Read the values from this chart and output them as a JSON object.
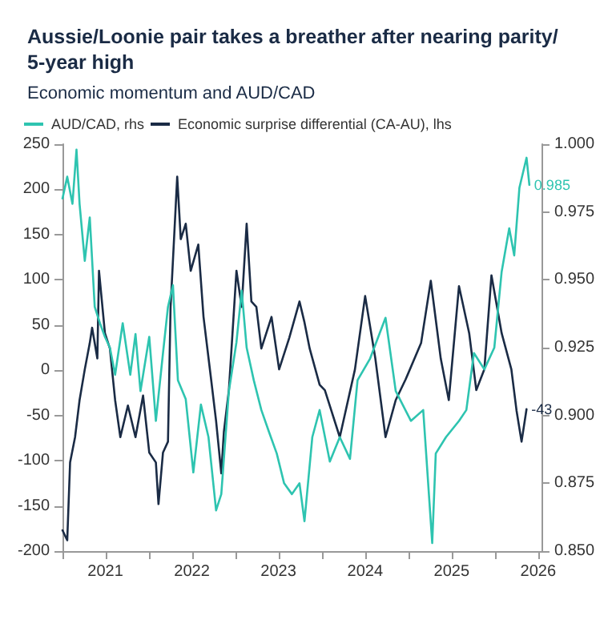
{
  "chart_data": {
    "type": "line",
    "title": "Aussie/Loonie pair takes a breather after nearing parity/ 5-year high",
    "subtitle": "Economic momentum and AUD/CAD",
    "legend": "top left",
    "grid": false,
    "marker": "none",
    "line_style": "solid",
    "xlim": [
      "2021-01-01",
      "2026-07-15"
    ],
    "xticks": [
      {
        "value": "2021-01-01",
        "label": null
      },
      {
        "value": "2021-07-01",
        "label": "2021"
      },
      {
        "value": "2022-01-01",
        "label": null
      },
      {
        "value": "2022-07-01",
        "label": "2022"
      },
      {
        "value": "2023-01-01",
        "label": null
      },
      {
        "value": "2023-07-01",
        "label": "2023"
      },
      {
        "value": "2024-01-01",
        "label": null
      },
      {
        "value": "2024-07-01",
        "label": "2024"
      },
      {
        "value": "2025-01-01",
        "label": null
      },
      {
        "value": "2025-07-01",
        "label": "2025"
      },
      {
        "value": "2026-01-01",
        "label": null
      },
      {
        "value": "2026-07-01",
        "label": "2026"
      }
    ],
    "ylim": [
      -200,
      250
    ],
    "yticks": [
      -200,
      -150,
      -100,
      -50,
      0,
      50,
      100,
      150,
      200,
      250
    ],
    "y2lim": [
      0.85,
      1.0
    ],
    "y2ticks": [
      {
        "value": 0.85,
        "label": "0.850"
      },
      {
        "value": 0.875,
        "label": "0.875"
      },
      {
        "value": 0.9,
        "label": "0.900"
      },
      {
        "value": 0.925,
        "label": "0.925"
      },
      {
        "value": 0.95,
        "label": "0.950"
      },
      {
        "value": 0.975,
        "label": "0.975"
      },
      {
        "value": 1.0,
        "label": "1.000"
      }
    ],
    "series": [
      {
        "name": "AUD/CAD, rhs",
        "color": "#2ec4b0",
        "axis": "y2",
        "x": [
          "2021-01-01",
          "2021-01-21",
          "2021-02-12",
          "2021-03-01",
          "2021-03-14",
          "2021-04-05",
          "2021-04-26",
          "2021-05-17",
          "2021-06-08",
          "2021-06-29",
          "2021-07-20",
          "2021-08-11",
          "2021-09-12",
          "2021-10-14",
          "2021-11-05",
          "2021-11-26",
          "2022-01-02",
          "2022-01-30",
          "2022-03-01",
          "2022-03-22",
          "2022-04-12",
          "2022-05-03",
          "2022-06-05",
          "2022-07-07",
          "2022-08-08",
          "2022-09-09",
          "2022-10-11",
          "2022-11-02",
          "2022-12-04",
          "2023-01-05",
          "2023-01-27",
          "2023-02-17",
          "2023-03-19",
          "2023-04-20",
          "2023-05-22",
          "2023-06-24",
          "2023-07-25",
          "2023-08-27",
          "2023-09-28",
          "2023-10-19",
          "2023-11-21",
          "2023-12-22",
          "2024-02-03",
          "2024-03-16",
          "2024-04-28",
          "2024-05-30",
          "2024-07-22",
          "2024-09-25",
          "2024-11-07",
          "2025-01-10",
          "2025-03-03",
          "2025-04-10",
          "2025-04-25",
          "2025-06-07",
          "2025-08-01",
          "2025-09-01",
          "2025-10-03",
          "2025-11-16",
          "2025-12-28",
          "2026-01-28",
          "2026-03-01",
          "2026-03-22",
          "2026-04-13",
          "2026-05-13",
          "2026-05-25"
        ],
        "values": [
          0.98,
          0.988,
          0.978,
          0.998,
          0.978,
          0.957,
          0.973,
          0.94,
          0.934,
          0.929,
          0.925,
          0.915,
          0.934,
          0.915,
          0.93,
          0.909,
          0.929,
          0.898,
          0.923,
          0.94,
          0.948,
          0.913,
          0.906,
          0.879,
          0.904,
          0.892,
          0.865,
          0.871,
          0.909,
          0.927,
          0.946,
          0.925,
          0.913,
          0.902,
          0.894,
          0.886,
          0.875,
          0.871,
          0.875,
          0.861,
          0.892,
          0.902,
          0.883,
          0.892,
          0.884,
          0.913,
          0.921,
          0.936,
          0.909,
          0.898,
          0.902,
          0.853,
          0.886,
          0.892,
          0.898,
          0.902,
          0.923,
          0.917,
          0.925,
          0.953,
          0.969,
          0.959,
          0.984,
          0.995,
          0.985
        ],
        "value_labels": [
          null,
          null,
          null,
          null,
          null,
          null,
          null,
          null,
          null,
          null,
          null,
          null,
          null,
          null,
          null,
          null,
          null,
          null,
          null,
          null,
          null,
          null,
          null,
          null,
          null,
          null,
          null,
          null,
          null,
          null,
          null,
          null,
          null,
          null,
          null,
          null,
          null,
          null,
          null,
          null,
          null,
          null,
          null,
          null,
          null,
          null,
          null,
          null,
          null,
          null,
          null,
          null,
          null,
          null,
          null,
          null,
          null,
          null,
          null,
          null,
          null,
          null,
          null,
          null,
          "0.985"
        ]
      },
      {
        "name": "Economic surprise differential (CA-AU), lhs",
        "color": "#1a2b45",
        "x": [
          "2021-01-01",
          "2021-01-21",
          "2021-02-02",
          "2021-02-23",
          "2021-03-14",
          "2021-04-05",
          "2021-04-26",
          "2021-05-06",
          "2021-05-28",
          "2021-06-04",
          "2021-06-29",
          "2021-07-20",
          "2021-08-11",
          "2021-09-02",
          "2021-10-04",
          "2021-11-05",
          "2021-12-07",
          "2022-01-02",
          "2022-01-30",
          "2022-02-10",
          "2022-03-01",
          "2022-03-22",
          "2022-04-02",
          "2022-04-30",
          "2022-05-15",
          "2022-06-05",
          "2022-06-26",
          "2022-07-28",
          "2022-08-19",
          "2022-09-20",
          "2022-10-11",
          "2022-11-02",
          "2022-11-13",
          "2022-12-04",
          "2023-01-05",
          "2023-01-27",
          "2023-02-17",
          "2023-03-09",
          "2023-03-30",
          "2023-04-20",
          "2023-06-02",
          "2023-07-04",
          "2023-08-16",
          "2023-09-28",
          "2023-10-19",
          "2023-11-10",
          "2023-12-22",
          "2024-01-13",
          "2024-03-16",
          "2024-05-19",
          "2024-07-01",
          "2024-08-13",
          "2024-09-25",
          "2024-11-07",
          "2024-12-19",
          "2025-02-22",
          "2025-04-04",
          "2025-05-16",
          "2025-06-19",
          "2025-08-01",
          "2025-09-13",
          "2025-10-13",
          "2025-11-16",
          "2025-12-16",
          "2026-01-28",
          "2026-03-10",
          "2026-04-01",
          "2026-04-22",
          "2026-05-13"
        ],
        "values": [
          -177,
          -188,
          -102,
          -74,
          -33,
          1,
          30,
          47,
          13,
          110,
          41,
          24,
          -33,
          -74,
          -39,
          -74,
          -28,
          -91,
          -102,
          -148,
          -91,
          -79,
          70,
          214,
          145,
          162,
          110,
          139,
          59,
          -10,
          -56,
          -114,
          -68,
          -22,
          110,
          70,
          162,
          76,
          70,
          24,
          59,
          1,
          36,
          76,
          53,
          24,
          -16,
          -22,
          -74,
          1,
          82,
          13,
          -74,
          -33,
          -10,
          30,
          99,
          13,
          -33,
          93,
          41,
          -22,
          1,
          105,
          41,
          1,
          -45,
          -79,
          -43
        ],
        "value_labels": [
          null,
          null,
          null,
          null,
          null,
          null,
          null,
          null,
          null,
          null,
          null,
          null,
          null,
          null,
          null,
          null,
          null,
          null,
          null,
          null,
          null,
          null,
          null,
          null,
          null,
          null,
          null,
          null,
          null,
          null,
          null,
          null,
          null,
          null,
          null,
          null,
          null,
          null,
          null,
          null,
          null,
          null,
          null,
          null,
          null,
          null,
          null,
          null,
          null,
          null,
          null,
          null,
          null,
          null,
          null,
          null,
          null,
          null,
          null,
          null,
          null,
          null,
          null,
          null,
          null,
          null,
          null,
          null,
          "-43"
        ]
      }
    ]
  }
}
